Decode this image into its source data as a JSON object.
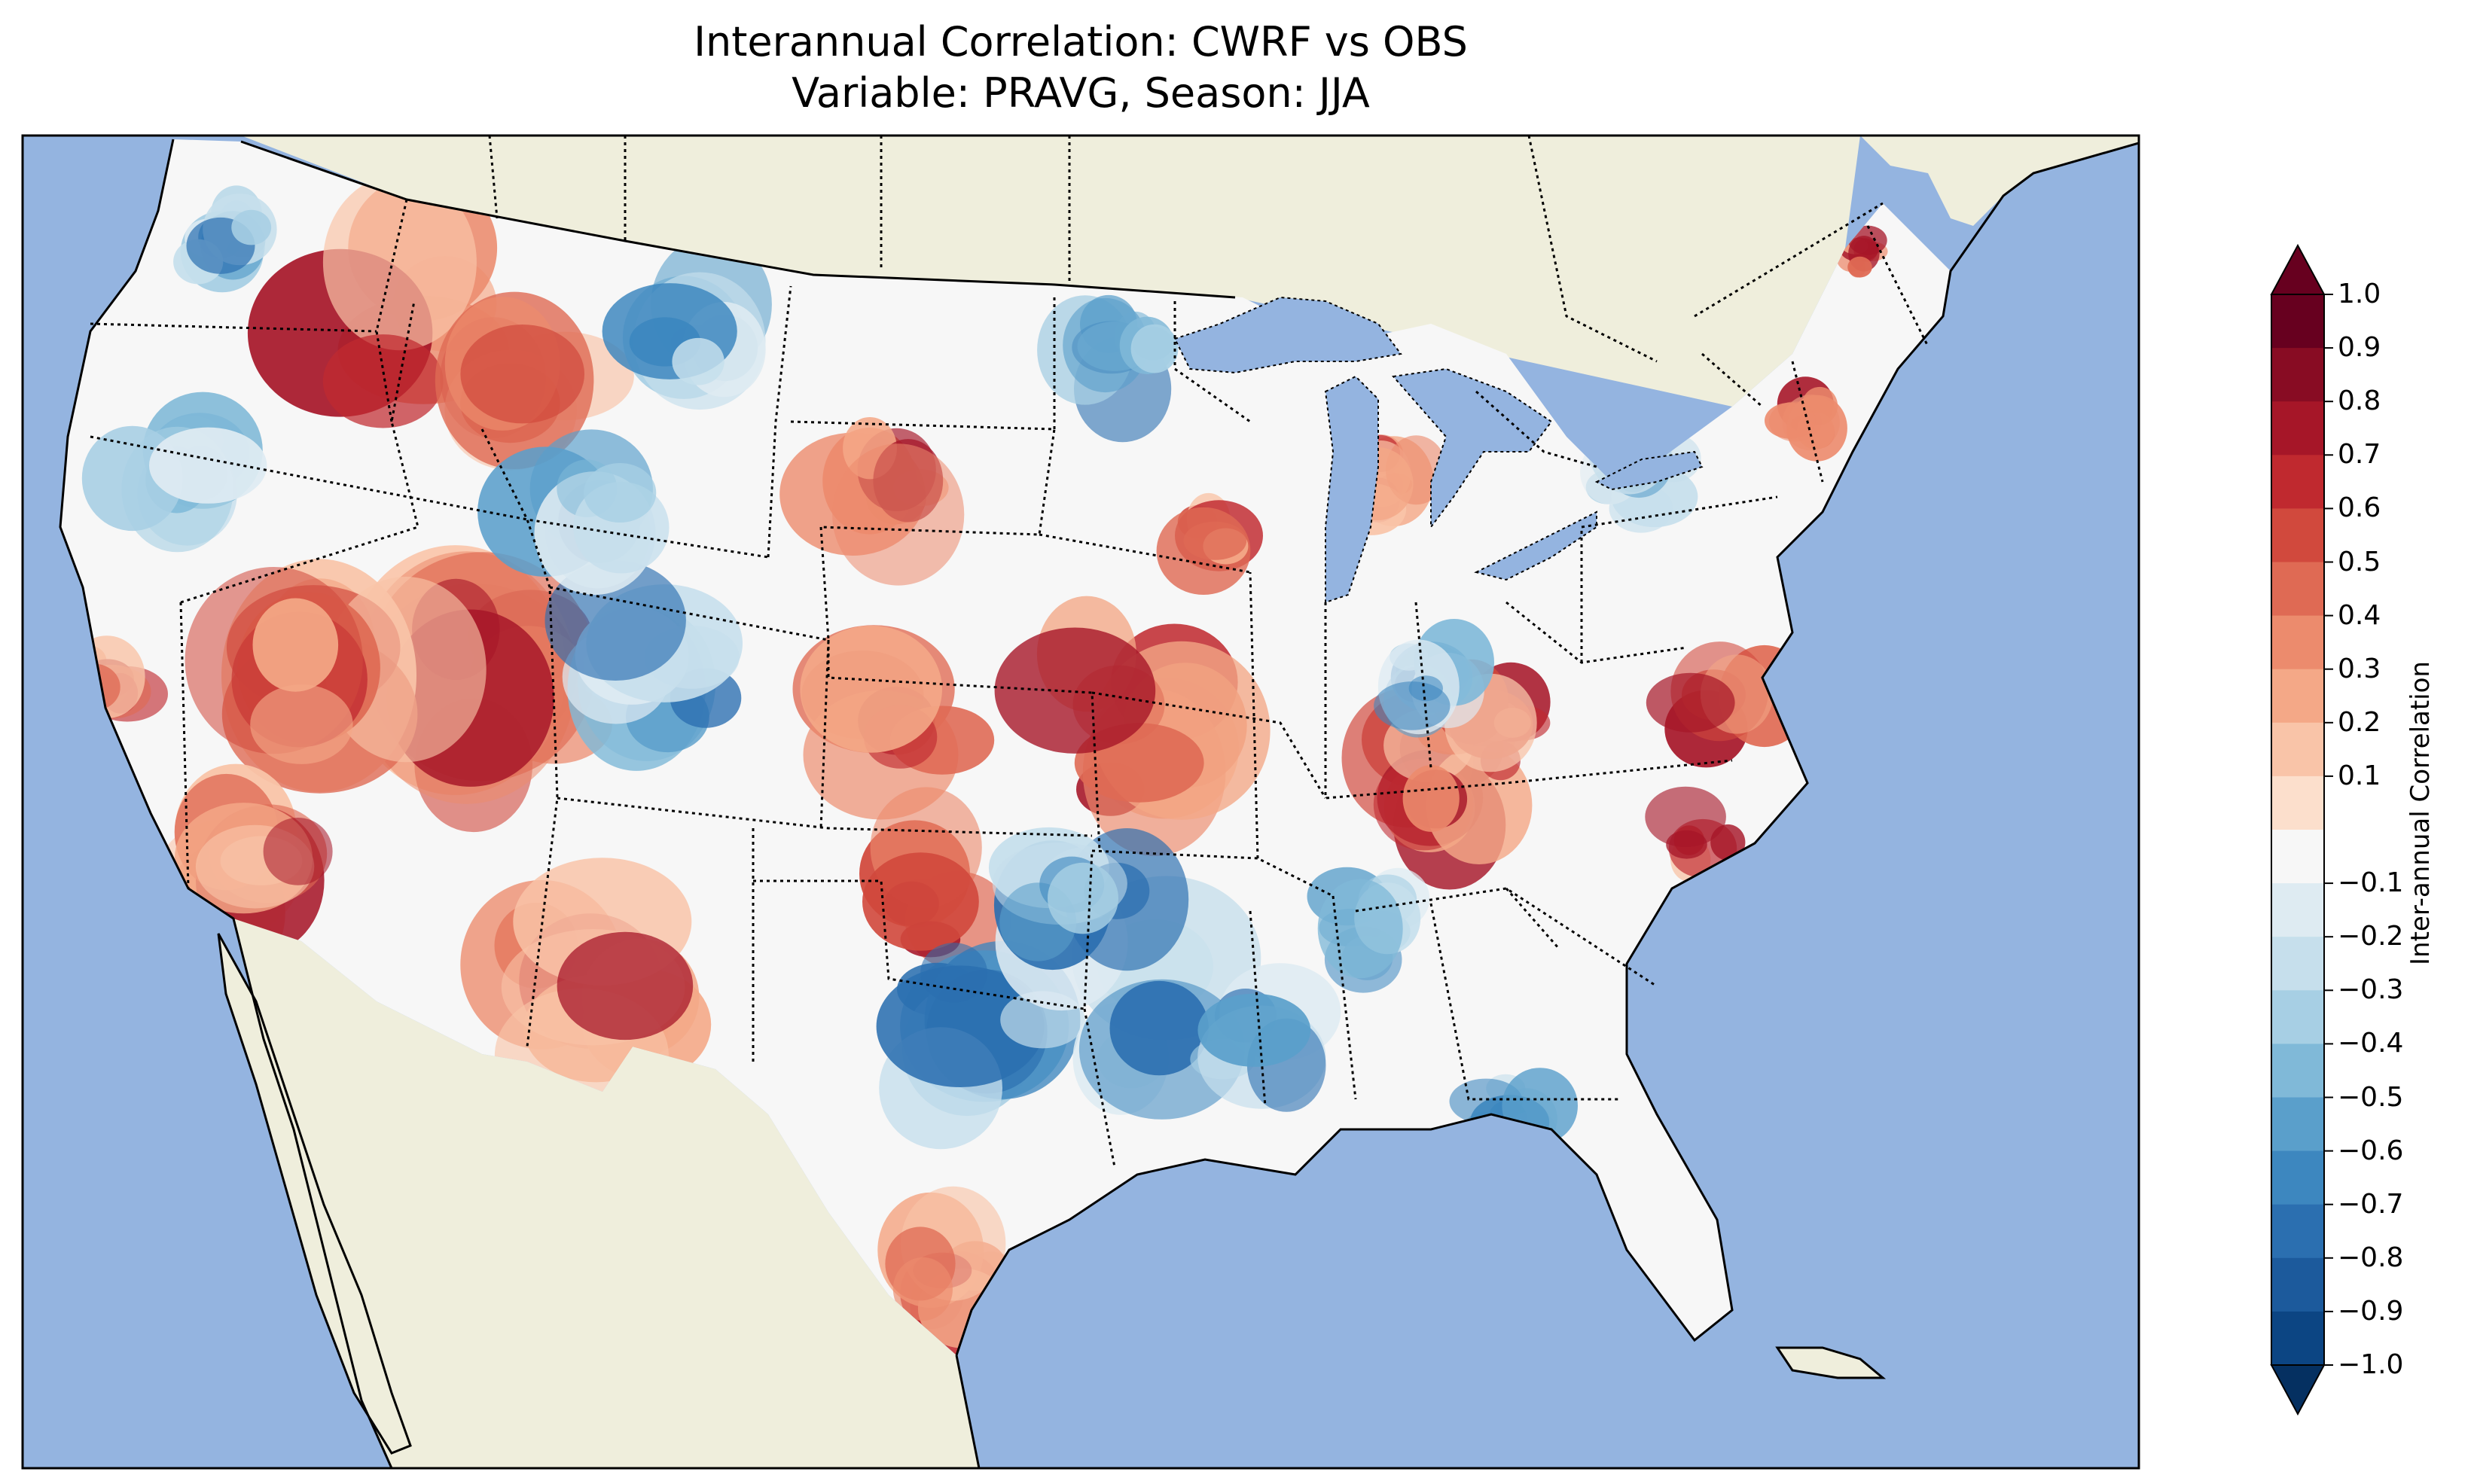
{
  "figure": {
    "title_line1": "Interannual Correlation: CWRF vs OBS",
    "title_line2": "Variable: PRAVG, Season: JJA"
  },
  "colors": {
    "ocean": "#94b4e0",
    "land": "#efeedc",
    "coast": "#000000"
  },
  "colorbar": {
    "label": "Inter-annual Correlation",
    "ticks": [
      "1.0",
      "0.9",
      "0.8",
      "0.7",
      "0.6",
      "0.5",
      "0.4",
      "0.3",
      "0.2",
      "0.1",
      "−0.1",
      "−0.2",
      "−0.3",
      "−0.4",
      "−0.5",
      "−0.6",
      "−0.7",
      "−0.8",
      "−0.9",
      "−1.0"
    ],
    "levels_top_to_bottom": [
      "#67001f",
      "#880c23",
      "#a61628",
      "#c0292f",
      "#d1493d",
      "#df6a54",
      "#ec8b6d",
      "#f4a887",
      "#f9c4a8",
      "#fcdfcc",
      "#f7f7f7",
      "#deebf2",
      "#c6dfec",
      "#a7cfe4",
      "#80b9d8",
      "#5a9fcb",
      "#3d87bf",
      "#2b6fb0",
      "#1c5a9c",
      "#0c4583"
    ],
    "min_color": "#053061",
    "max_color": "#67001f"
  },
  "map": {
    "projection": "Lambert Conformal (CONUS)",
    "field": "inter-annual correlation of JJA PRAVG, CWRF vs OBS"
  }
}
